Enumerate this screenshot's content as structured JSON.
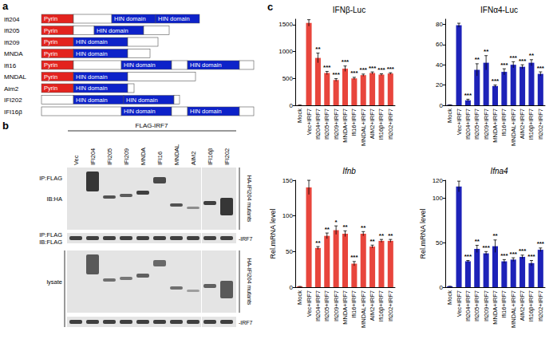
{
  "panel_a": {
    "label": "a",
    "domains": [
      {
        "label": "Pyrin",
        "color": "#e3231e"
      },
      {
        "label": "HIN domain",
        "color": "#0d22c9"
      }
    ],
    "rows": [
      {
        "name": "Ifi204",
        "domains": [
          "Pyrin",
          "HIN domain",
          "HIN domain"
        ]
      },
      {
        "name": "Ifi205",
        "domains": [
          "Pyrin",
          "HIN domain"
        ]
      },
      {
        "name": "Ifi209",
        "domains": [
          "Pyrin",
          "HIN domain"
        ]
      },
      {
        "name": "MNDA",
        "domains": [
          "Pyrin",
          "HIN domain"
        ]
      },
      {
        "name": "Ifi16",
        "domains": [
          "Pyrin",
          "HIN domain",
          "HIN domain"
        ]
      },
      {
        "name": "MNDAL",
        "domains": [
          "Pyrin",
          "HIN domain"
        ]
      },
      {
        "name": "Aim2",
        "domains": [
          "Pyrin",
          "HIN domain"
        ]
      },
      {
        "name": "IFI202",
        "domains": [
          "HIN domain",
          "HIN domain"
        ]
      },
      {
        "name": "IFI16β",
        "domains": [
          "HIN domain",
          "HIN domain"
        ]
      }
    ]
  },
  "panel_b": {
    "label": "b",
    "header": "FLAG-IRF7",
    "lanes": [
      "Vec",
      "IFI204",
      "IFI205",
      "IFI209",
      "MNDA",
      "IFI16",
      "MNDAL",
      "AIM2",
      "IFI16β",
      "IFI202"
    ],
    "left_labels": [
      "IP:FLAG",
      "IB:HA",
      "IP:FLAG",
      "IB:FLAG",
      "lysate"
    ],
    "right_labels": [
      "HA-IFI204 mutants",
      "-IRF7",
      "HA-IFI204 mutants",
      "-IRF7"
    ]
  },
  "panel_c_label": "c",
  "chart_data": [
    {
      "type": "bar",
      "title": "IFNβ-Luc",
      "categories": [
        "Mock",
        "Vec+IRF7",
        "Ifi204+IRF7",
        "Ifi205+IRF7",
        "Ifi209+IRF7",
        "MNDA+IRF7",
        "Ifi16+IRF7",
        "MNDAL+IRF7",
        "AIM2+IRF7",
        "Ifi16β+IRF7",
        "Ifi202+IRF7"
      ],
      "values": [
        5,
        1530,
        880,
        600,
        470,
        680,
        500,
        560,
        600,
        570,
        590
      ],
      "errors": [
        0,
        60,
        90,
        30,
        25,
        50,
        20,
        20,
        20,
        15,
        15
      ],
      "annotations": [
        null,
        null,
        "**",
        "***",
        "***",
        "***",
        "***",
        "***",
        "***",
        "***",
        "***"
      ],
      "color": "#e8453c",
      "ylim": [
        0,
        1600
      ],
      "yticks": [
        0,
        500,
        1000,
        1500
      ],
      "grid": false
    },
    {
      "type": "bar",
      "title": "IFNα4-Luc",
      "categories": [
        "Mock",
        "Vec+IRF7",
        "Ifi204+IRF7",
        "Ifi205+IRF7",
        "Ifi209+IRF7",
        "MNDA+IRF7",
        "Ifi16+IRF7",
        "MNDAL+IRF7",
        "AIM2+IRF7",
        "Ifi16β+IRF7",
        "Ifi202+IRF7"
      ],
      "values": [
        0.5,
        79,
        5,
        35,
        42,
        19,
        33,
        40,
        38,
        42,
        31
      ],
      "errors": [
        0,
        2,
        1,
        6,
        7,
        1,
        3,
        3,
        2,
        3,
        2
      ],
      "annotations": [
        null,
        null,
        "***",
        "**",
        "**",
        "***",
        "***",
        "***",
        "***",
        "**",
        "***"
      ],
      "color": "#1d22b8",
      "ylim": [
        0,
        85
      ],
      "yticks": [
        0,
        20,
        40,
        60,
        80
      ],
      "grid": false
    },
    {
      "type": "bar",
      "title": "Ifnb",
      "y_label": "Rel.mRNA level",
      "categories": [
        "Mock",
        "Vec+IRF7",
        "Ifi204+IRF7",
        "Ifi205+IRF7",
        "Ifi209+IRF7",
        "MNDA+IRF7",
        "Ifi16+IRF7",
        "MNDAL+IRF7",
        "AIM2+IRF7",
        "Ifi16β+IRF7",
        "Ifi202+IRF7"
      ],
      "values": [
        1,
        140,
        55,
        72,
        80,
        75,
        33,
        75,
        57,
        65,
        65
      ],
      "errors": [
        0,
        10,
        2,
        4,
        6,
        4,
        3,
        3,
        2,
        2,
        2
      ],
      "annotations": [
        null,
        null,
        "**",
        "**",
        "*",
        "**",
        "***",
        "**",
        "**",
        "**",
        "**"
      ],
      "color": "#e8453c",
      "ylim": [
        0,
        150
      ],
      "yticks": [
        0,
        50,
        100,
        150
      ],
      "grid": false
    },
    {
      "type": "bar",
      "title": "Ifna4",
      "y_label": "Rel.mRNA level",
      "categories": [
        "Mock",
        "Vec+IRF7",
        "Ifi204+IRF7",
        "Ifi205+IRF7",
        "Ifi209+IRF7",
        "MNDA+IRF7",
        "Ifi16+IRF7",
        "MNDAL+IRF7",
        "AIM2+IRF7",
        "Ifi16β+IRF7",
        "Ifi202+IRF7"
      ],
      "values": [
        1,
        113,
        29,
        43,
        38,
        46,
        29,
        31,
        34,
        27,
        42
      ],
      "errors": [
        0,
        6,
        1,
        4,
        2,
        7,
        2,
        2,
        2,
        3,
        2
      ],
      "annotations": [
        null,
        null,
        "***",
        "**",
        "***",
        "**",
        "***",
        "***",
        "***",
        "***",
        "***"
      ],
      "color": "#1d22b8",
      "ylim": [
        0,
        120
      ],
      "yticks": [
        0,
        50,
        100
      ],
      "grid": false
    }
  ]
}
